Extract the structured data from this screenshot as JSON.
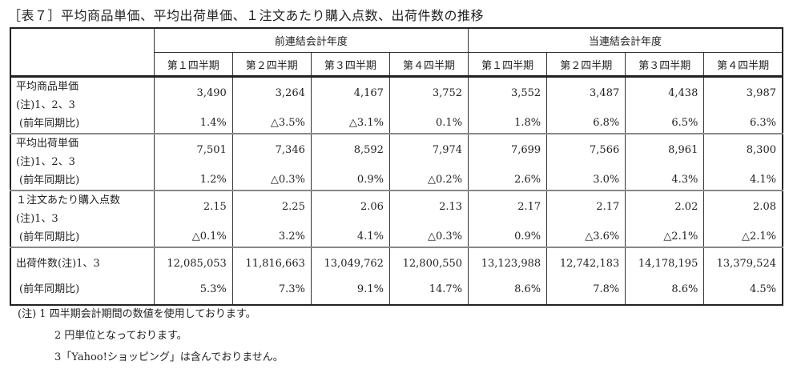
{
  "title": "［表７］平均商品単価、平均出荷単価、１注文あたり購入点数、出荷件数の推移",
  "header": {
    "prev_year": "前連結会計年度",
    "curr_year": "当連結会計年度",
    "quarters": [
      "第１四半期",
      "第２四半期",
      "第３四半期",
      "第４四半期"
    ]
  },
  "rows": [
    {
      "label1": "平均商品単価",
      "label2": "(注)1、2、3",
      "pct_label": "(前年同期比)",
      "values": [
        "3,490",
        "3,264",
        "4,167",
        "3,752",
        "3,552",
        "3,487",
        "4,438",
        "3,987"
      ],
      "pcts": [
        "1.4%",
        "△3.5%",
        "△3.1%",
        "0.1%",
        "1.8%",
        "6.8%",
        "6.5%",
        "6.3%"
      ]
    },
    {
      "label1": "平均出荷単価",
      "label2": "(注)1、2、3",
      "pct_label": "(前年同期比)",
      "values": [
        "7,501",
        "7,346",
        "8,592",
        "7,974",
        "7,699",
        "7,566",
        "8,961",
        "8,300"
      ],
      "pcts": [
        "1.2%",
        "△0.3%",
        "0.9%",
        "△0.2%",
        "2.6%",
        "3.0%",
        "4.3%",
        "4.1%"
      ]
    },
    {
      "label1": "１注文あたり購入点数",
      "label2": "(注)1、3",
      "pct_label": "(前年同期比)",
      "values": [
        "2.15",
        "2.25",
        "2.06",
        "2.13",
        "2.17",
        "2.17",
        "2.02",
        "2.08"
      ],
      "pcts": [
        "△0.1%",
        "3.2%",
        "4.1%",
        "△0.3%",
        "0.9%",
        "△3.6%",
        "△2.1%",
        "△2.1%"
      ]
    },
    {
      "label1": "出荷件数(注)1、3",
      "pct_label": "(前年同期比)",
      "values": [
        "12,085,053",
        "11,816,663",
        "13,049,762",
        "12,800,550",
        "13,123,988",
        "12,742,183",
        "14,178,195",
        "13,379,524"
      ],
      "pcts": [
        "5.3%",
        "7.3%",
        "9.1%",
        "14.7%",
        "8.6%",
        "7.8%",
        "8.6%",
        "4.5%"
      ]
    }
  ],
  "notes": [
    "(注) 1 四半期会計期間の数値を使用しております。",
    "2 円単位となっております。",
    "3「Yahoo!ショッピング」は含んでおりません。"
  ]
}
